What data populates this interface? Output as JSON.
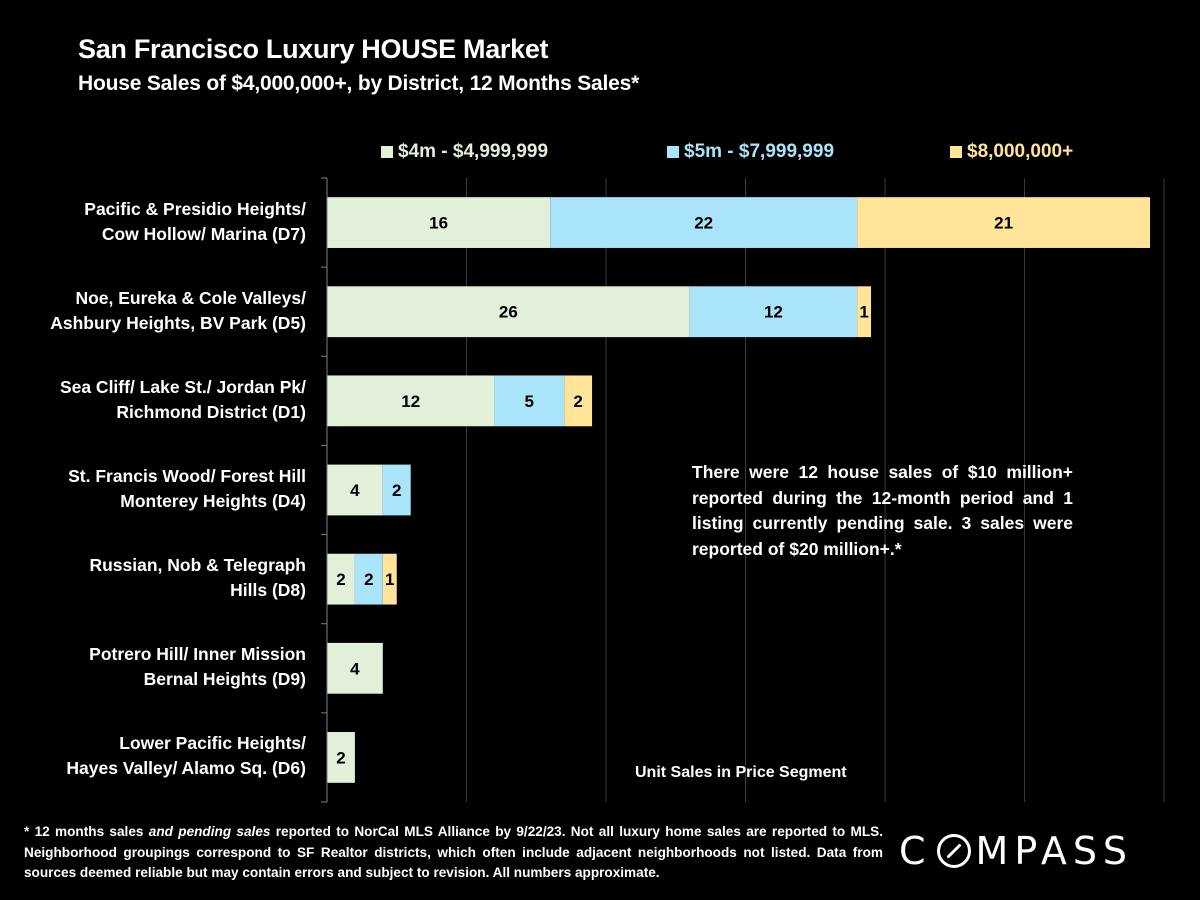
{
  "header": {
    "title": "San Francisco Luxury HOUSE Market",
    "subtitle": "House Sales of $4,000,000+, by District, 12 Months Sales*"
  },
  "colors": {
    "background": "#000000",
    "text": "#FFFFFF",
    "segment_1": "#E2EFD9",
    "segment_2": "#A9E4FB",
    "segment_3": "#FFE49A",
    "gridline": "#3A3A3A",
    "axis": "#7F7F7F"
  },
  "chart_data": {
    "type": "bar",
    "orientation": "horizontal",
    "stacked": true,
    "title": "San Francisco Luxury HOUSE Market",
    "subtitle": "House Sales of $4,000,000+, by District, 12 Months Sales*",
    "xlabel": "Unit Sales in Price Segment",
    "ylabel": "",
    "xlim": [
      0,
      60
    ],
    "x_grid_step": 10,
    "grid": true,
    "x_tick_labels_visible": false,
    "legend_position": "top",
    "categories": [
      [
        "Pacific & Presidio Heights/",
        "Cow Hollow/ Marina (D7)"
      ],
      [
        "Noe, Eureka & Cole Valleys/",
        "Ashbury Heights, BV Park (D5)"
      ],
      [
        "Sea Cliff/ Lake St./ Jordan Pk/",
        "Richmond District (D1)"
      ],
      [
        "St. Francis Wood/ Forest Hill",
        "Monterey Heights (D4)"
      ],
      [
        "Russian, Nob & Telegraph",
        "Hills (D8)"
      ],
      [
        "Potrero Hill/ Inner Mission",
        "Bernal Heights (D9)"
      ],
      [
        "Lower Pacific Heights/",
        "Hayes Valley/ Alamo Sq. (D6)"
      ]
    ],
    "series": [
      {
        "name": "$4m - $4,999,999",
        "color": "#E2EFD9",
        "values": [
          16,
          26,
          12,
          4,
          2,
          4,
          2
        ]
      },
      {
        "name": "$5m - $7,999,999",
        "color": "#A9E4FB",
        "values": [
          22,
          12,
          5,
          2,
          2,
          0,
          0
        ]
      },
      {
        "name": "$8,000,000+",
        "color": "#FFE49A",
        "values": [
          21,
          1,
          2,
          0,
          1,
          0,
          0
        ]
      }
    ]
  },
  "legend": [
    {
      "label": "$4m - $4,999,999",
      "color": "#E2EFD9"
    },
    {
      "label": "$5m - $7,999,999",
      "color": "#A9E4FB"
    },
    {
      "label": "$8,000,000+",
      "color": "#FFE49A"
    }
  ],
  "annotation": "There were 12 house sales of $10 million+ reported during the 12-month period and 1 listing currently pending sale. 3 sales were reported of $20 million+.*",
  "footnote": {
    "prefix": "* 12 months sales ",
    "italic": "and pending sales",
    "rest": " reported to NorCal MLS Alliance by 9/22/23. Not all luxury home sales are reported to MLS. Neighborhood groupings correspond to SF Realtor districts, which often include adjacent neighborhoods not listed. Data from sources deemed reliable but may contain errors and subject to revision. All numbers approximate."
  },
  "logo": {
    "brand": "COMPASS",
    "before_o": "C",
    "after_o": "MPASS"
  }
}
